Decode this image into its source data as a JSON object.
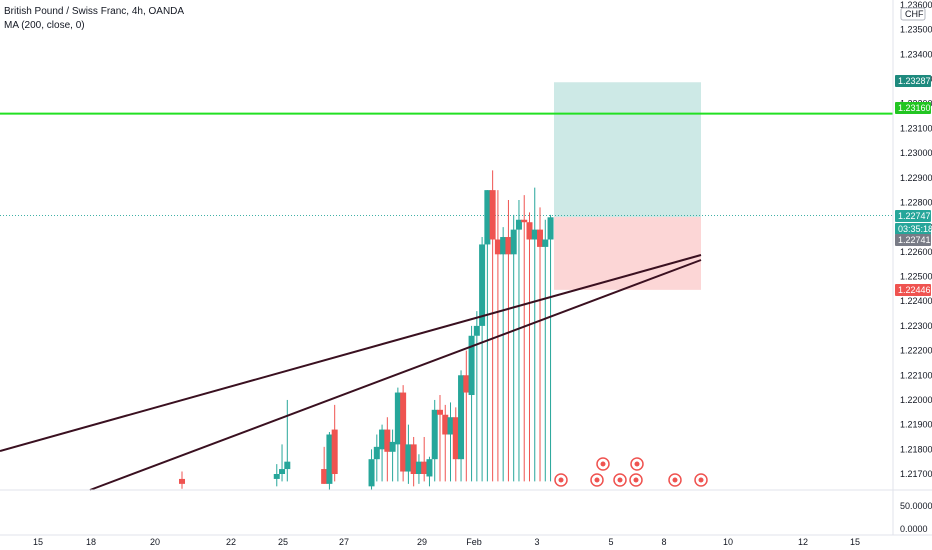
{
  "legend": {
    "symbol_line": "British Pound / Swiss Franc, 4h, OANDA",
    "indicator_line": "MA (200, close, 0)"
  },
  "currency_badge": "CHF",
  "colors": {
    "up": "#26a69a",
    "down": "#ef5350",
    "trendline": "#3a1020",
    "horizontal": "#22e022",
    "profit_zone": "#cde9e6",
    "loss_zone": "#fcd6d6"
  },
  "chart_data": {
    "type": "candlestick",
    "timeframe": "4h",
    "y_axis": {
      "ticks": [
        "1.23600",
        "1.23500",
        "1.23400",
        "1.23300",
        "1.23200",
        "1.23100",
        "1.23000",
        "1.22900",
        "1.22800",
        "1.22700",
        "1.22600",
        "1.22500",
        "1.22400",
        "1.22300",
        "1.22200",
        "1.22100",
        "1.22000",
        "1.21900",
        "1.21800",
        "1.21700"
      ],
      "range": [
        1.2166,
        1.2362
      ]
    },
    "x_axis": {
      "ticks": [
        "15",
        "18",
        "20",
        "22",
        "25",
        "27",
        "29",
        "Feb",
        "3",
        "5",
        "8",
        "10",
        "12",
        "15"
      ]
    },
    "price_labels": [
      {
        "value": "1.23287",
        "color": "#1e8a7e"
      },
      {
        "value": "1.23160",
        "color": "#22c522"
      },
      {
        "value": "1.22747",
        "color": "#26a69a"
      },
      {
        "value": "03:35:18",
        "color": "#26a69a"
      },
      {
        "value": "1.22741",
        "color": "#787b86"
      },
      {
        "value": "1.22446",
        "color": "#ef5350"
      }
    ],
    "position": {
      "entry": 1.22741,
      "target": 1.23287,
      "stop": 1.22446
    },
    "horizontal_level": 1.2316,
    "candles": [
      [
        0.0,
        1.2168,
        1.2171,
        1.2164,
        1.2166
      ],
      [
        9.0,
        1.2168,
        1.2174,
        1.2165,
        1.217
      ],
      [
        9.5,
        1.217,
        1.2182,
        1.2167,
        1.2172
      ],
      [
        10.0,
        1.2172,
        1.22,
        1.2168,
        1.2175
      ],
      [
        13.5,
        1.2172,
        1.2181,
        1.2166,
        1.2166
      ],
      [
        14.0,
        1.2166,
        1.2187,
        1.2162,
        1.2186
      ],
      [
        14.5,
        1.2188,
        1.2198,
        1.2168,
        1.217
      ],
      [
        18.0,
        1.2165,
        1.218,
        1.2162,
        1.2176
      ],
      [
        18.5,
        1.2176,
        1.2186,
        1.217,
        1.2181
      ],
      [
        19.0,
        1.218,
        1.219,
        1.2174,
        1.2188
      ],
      [
        19.5,
        1.2188,
        1.2193,
        1.2176,
        1.2179
      ],
      [
        20.0,
        1.2179,
        1.2188,
        1.2176,
        1.2183
      ],
      [
        20.5,
        1.2182,
        1.2205,
        1.2178,
        1.2203
      ],
      [
        21.0,
        1.2203,
        1.2206,
        1.2168,
        1.2171
      ],
      [
        21.5,
        1.2171,
        1.219,
        1.2166,
        1.2182
      ],
      [
        22.0,
        1.2182,
        1.2185,
        1.2165,
        1.217
      ],
      [
        22.5,
        1.217,
        1.2178,
        1.2166,
        1.2175
      ],
      [
        23.0,
        1.2175,
        1.2185,
        1.2169,
        1.217
      ],
      [
        23.5,
        1.2169,
        1.2177,
        1.2165,
        1.2176
      ],
      [
        24.0,
        1.2176,
        1.22,
        1.217,
        1.2196
      ],
      [
        24.5,
        1.2196,
        1.2202,
        1.218,
        1.2194
      ],
      [
        25.0,
        1.2194,
        1.2198,
        1.2185,
        1.2186
      ],
      [
        25.5,
        1.2186,
        1.2199,
        1.2178,
        1.2193
      ],
      [
        26.0,
        1.2193,
        1.2197,
        1.2174,
        1.2176
      ],
      [
        26.5,
        1.2176,
        1.2212,
        1.2171,
        1.221
      ],
      [
        27.0,
        1.221,
        1.222,
        1.2195,
        1.2203
      ],
      [
        27.5,
        1.2202,
        1.223,
        1.2196,
        1.2226
      ],
      [
        28.0,
        1.2226,
        1.2236,
        1.2223,
        1.223
      ],
      [
        28.5,
        1.223,
        1.2266,
        1.2224,
        1.2263
      ],
      [
        29.0,
        1.2263,
        1.2285,
        1.2255,
        1.2285
      ],
      [
        29.5,
        1.2285,
        1.2293,
        1.2264,
        1.2265
      ],
      [
        30.0,
        1.2265,
        1.2285,
        1.2224,
        1.2259
      ],
      [
        30.5,
        1.2259,
        1.227,
        1.2258,
        1.2266
      ],
      [
        31.0,
        1.2266,
        1.2281,
        1.2257,
        1.2259
      ],
      [
        31.5,
        1.2259,
        1.2275,
        1.2258,
        1.2269
      ],
      [
        32.0,
        1.2269,
        1.2281,
        1.2262,
        1.2273
      ],
      [
        32.5,
        1.2273,
        1.2283,
        1.2263,
        1.2272
      ],
      [
        33.0,
        1.2272,
        1.2276,
        1.2263,
        1.2265
      ],
      [
        33.5,
        1.2265,
        1.2286,
        1.2261,
        1.2269
      ],
      [
        34.0,
        1.2269,
        1.2278,
        1.225,
        1.2262
      ],
      [
        34.5,
        1.2262,
        1.2273,
        1.226,
        1.2265
      ],
      [
        35.0,
        1.2265,
        1.2275,
        1.2264,
        1.2274
      ]
    ]
  }
}
